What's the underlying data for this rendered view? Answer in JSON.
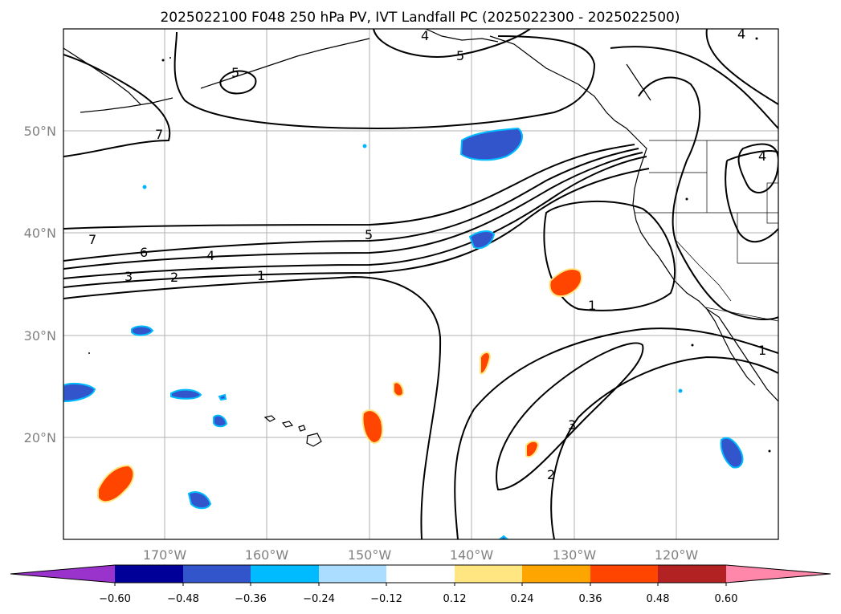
{
  "title": "2025022100 F048 250 hPa PV, IVT Landfall PC (2025022300 - 2025022500)",
  "lon_labels": [
    "170°W",
    "160°W",
    "150°W",
    "140°W",
    "130°W",
    "120°W"
  ],
  "lat_labels": [
    "50°N",
    "40°N",
    "30°N",
    "20°N"
  ],
  "colorbar": {
    "tick_labels": [
      "−0.60",
      "−0.48",
      "−0.36",
      "−0.24",
      "−0.12",
      "0.12",
      "0.24",
      "0.36",
      "0.48",
      "0.60"
    ],
    "colors": [
      "#9933cc",
      "#000099",
      "#3355cc",
      "#00bbff",
      "#aaddff",
      "#ffffff",
      "#ffe680",
      "#ffa500",
      "#ff4500",
      "#b22222",
      "#ff88aa"
    ]
  },
  "contour_labels": {
    "west_top_7": "7",
    "west_top_5": "5",
    "north_4": "4",
    "north_5": "5",
    "ne_4": "4",
    "west_7": "7",
    "west_6": "6",
    "west_4": "4",
    "west_3": "3",
    "west_2": "2",
    "west_1": "1",
    "center_5": "5",
    "east_1": "1",
    "coast_4": "4",
    "coast_1": "1",
    "south_3": "3",
    "south_2": "2"
  },
  "colors": {
    "land_line": "#000000",
    "grid": "#b0b0b0",
    "negative_fill": "#3355cc",
    "negative_edge": "#00bbff",
    "positive_fill": "#ff4500",
    "positive_edge": "#ffe680"
  }
}
